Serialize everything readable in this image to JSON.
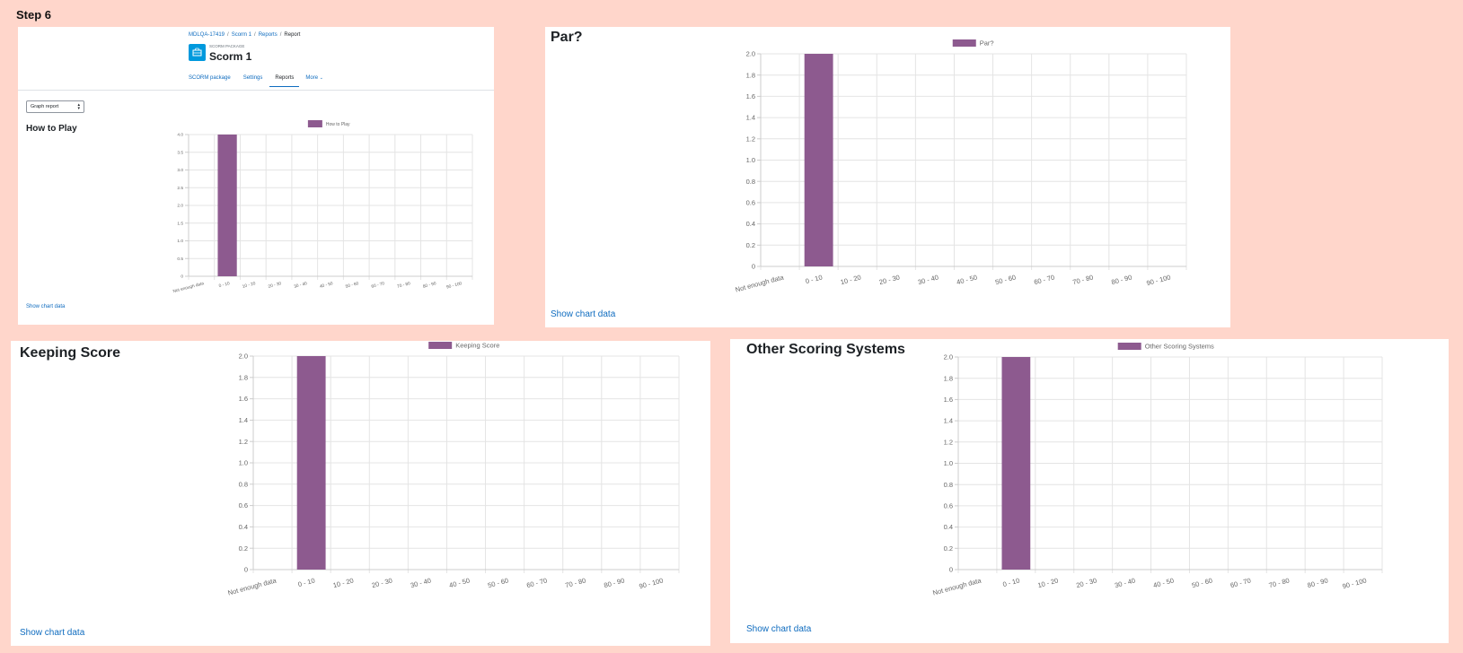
{
  "step_title": "Step 6",
  "breadcrumb": [
    "MDLQA-17419",
    "Scorm 1",
    "Reports",
    "Report"
  ],
  "module": {
    "kicker": "SCORM PACKAGE",
    "title": "Scorm 1"
  },
  "tabs": [
    {
      "label": "SCORM package",
      "active": false
    },
    {
      "label": "Settings",
      "active": false
    },
    {
      "label": "Reports",
      "active": true
    },
    {
      "label": "More",
      "active": false
    }
  ],
  "report_select": {
    "value": "Graph report"
  },
  "show_chart_label": "Show chart data",
  "colors": {
    "bar": "#8d5a8f",
    "link": "#0f6cbf",
    "background": "#ffd6cb"
  },
  "chart_data": [
    {
      "type": "bar",
      "title": "How to Play",
      "categories": [
        "Not enough data",
        "0 - 10",
        "10 - 20",
        "20 - 30",
        "30 - 40",
        "40 - 50",
        "50 - 60",
        "60 - 70",
        "70 - 80",
        "80 - 90",
        "90 - 100"
      ],
      "series": [
        {
          "name": "How to Play",
          "values": [
            0,
            4,
            0,
            0,
            0,
            0,
            0,
            0,
            0,
            0,
            0
          ]
        }
      ],
      "ylim": [
        0,
        4
      ],
      "yticks": [
        "0",
        "0.5",
        "1.0",
        "1.5",
        "2.0",
        "2.5",
        "3.0",
        "3.5",
        "4.0"
      ],
      "legend": "top",
      "grid": true
    },
    {
      "type": "bar",
      "title": "Par?",
      "categories": [
        "Not enough data",
        "0 - 10",
        "10 - 20",
        "20 - 30",
        "30 - 40",
        "40 - 50",
        "50 - 60",
        "60 - 70",
        "70 - 80",
        "80 - 90",
        "90 - 100"
      ],
      "series": [
        {
          "name": "Par?",
          "values": [
            0,
            2,
            0,
            0,
            0,
            0,
            0,
            0,
            0,
            0,
            0
          ]
        }
      ],
      "ylim": [
        0,
        2
      ],
      "yticks": [
        "0",
        "0.2",
        "0.4",
        "0.6",
        "0.8",
        "1.0",
        "1.2",
        "1.4",
        "1.6",
        "1.8",
        "2.0"
      ],
      "legend": "top",
      "grid": true
    },
    {
      "type": "bar",
      "title": "Keeping Score",
      "categories": [
        "Not enough data",
        "0 - 10",
        "10 - 20",
        "20 - 30",
        "30 - 40",
        "40 - 50",
        "50 - 60",
        "60 - 70",
        "70 - 80",
        "80 - 90",
        "90 - 100"
      ],
      "series": [
        {
          "name": "Keeping Score",
          "values": [
            0,
            2,
            0,
            0,
            0,
            0,
            0,
            0,
            0,
            0,
            0
          ]
        }
      ],
      "ylim": [
        0,
        2
      ],
      "yticks": [
        "0",
        "0.2",
        "0.4",
        "0.6",
        "0.8",
        "1.0",
        "1.2",
        "1.4",
        "1.6",
        "1.8",
        "2.0"
      ],
      "legend": "top",
      "grid": true
    },
    {
      "type": "bar",
      "title": "Other Scoring Systems",
      "categories": [
        "Not enough data",
        "0 - 10",
        "10 - 20",
        "20 - 30",
        "30 - 40",
        "40 - 50",
        "50 - 60",
        "60 - 70",
        "70 - 80",
        "80 - 90",
        "90 - 100"
      ],
      "series": [
        {
          "name": "Other Scoring Systems",
          "values": [
            0,
            2,
            0,
            0,
            0,
            0,
            0,
            0,
            0,
            0,
            0
          ]
        }
      ],
      "ylim": [
        0,
        2
      ],
      "yticks": [
        "0",
        "0.2",
        "0.4",
        "0.6",
        "0.8",
        "1.0",
        "1.2",
        "1.4",
        "1.6",
        "1.8",
        "2.0"
      ],
      "legend": "top",
      "grid": true
    }
  ]
}
